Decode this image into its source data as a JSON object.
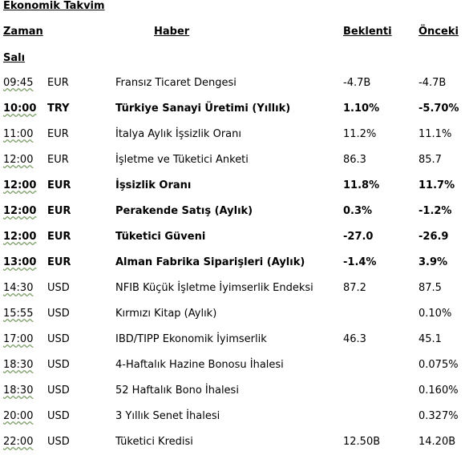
{
  "title": "Ekonomik Takvim",
  "headers": {
    "time": "Zaman",
    "news": "Haber",
    "expected": "Beklenti",
    "previous": "Önceki"
  },
  "section": "Salı",
  "rows": [
    {
      "time": "09:45",
      "currency": "EUR",
      "news": "Fransız Ticaret Dengesi",
      "expected": "-4.7B",
      "previous": "-4.7B",
      "bold": false
    },
    {
      "time": "10:00",
      "currency": "TRY",
      "news": "Türkiye Sanayi Üretimi (Yıllık)",
      "expected": "1.10%",
      "previous": "-5.70%",
      "bold": true
    },
    {
      "time": "11:00",
      "currency": "EUR",
      "news": "İtalya Aylık İşsizlik Oranı",
      "expected": "11.2%",
      "previous": "11.1%",
      "bold": false
    },
    {
      "time": "12:00",
      "currency": "EUR",
      "news": "İşletme ve Tüketici Anketi",
      "expected": "86.3",
      "previous": "85.7",
      "bold": false
    },
    {
      "time": "12:00",
      "currency": "EUR",
      "news": "İşsizlik Oranı",
      "expected": "11.8%",
      "previous": "11.7%",
      "bold": true
    },
    {
      "time": "12:00",
      "currency": "EUR",
      "news": "Perakende Satış (Aylık)",
      "expected": "0.3%",
      "previous": "-1.2%",
      "bold": true
    },
    {
      "time": "12:00",
      "currency": "EUR",
      "news": "Tüketici Güveni",
      "expected": "-27.0",
      "previous": "-26.9",
      "bold": true
    },
    {
      "time": "13:00",
      "currency": "EUR",
      "news": "Alman Fabrika Siparişleri (Aylık)",
      "expected": " -1.4%",
      "previous": "3.9%",
      "bold": true
    },
    {
      "time": "14:30",
      "currency": "USD",
      "news": "NFIB Küçük İşletme İyimserlik Endeksi",
      "expected": " 87.2",
      "previous": "87.5",
      "bold": false
    },
    {
      "time": "15:55",
      "currency": "USD",
      "news": "Kırmızı Kitap (Aylık)",
      "expected": "",
      "previous": "0.10%",
      "bold": false
    },
    {
      "time": "17:00",
      "currency": "USD",
      "news": "IBD/TIPP Ekonomik İyimserlik",
      "expected": "46.3",
      "previous": "45.1",
      "bold": false
    },
    {
      "time": "18:30",
      "currency": "USD",
      "news": "4-Haftalık Hazine Bonosu İhalesi",
      "expected": "",
      "previous": "0.075%",
      "bold": false
    },
    {
      "time": "18:30",
      "currency": "USD",
      "news": "52 Haftalık Bono İhalesi",
      "expected": "",
      "previous": "0.160%",
      "bold": false
    },
    {
      "time": "20:00",
      "currency": "USD",
      "news": "3 Yıllık  Senet İhalesi",
      "expected": "",
      "previous": "0.327%",
      "bold": false
    },
    {
      "time": "22:00",
      "currency": "USD",
      "news": "Tüketici Kredisi",
      "expected": "12.50B",
      "previous": "14.20B",
      "bold": false
    }
  ]
}
